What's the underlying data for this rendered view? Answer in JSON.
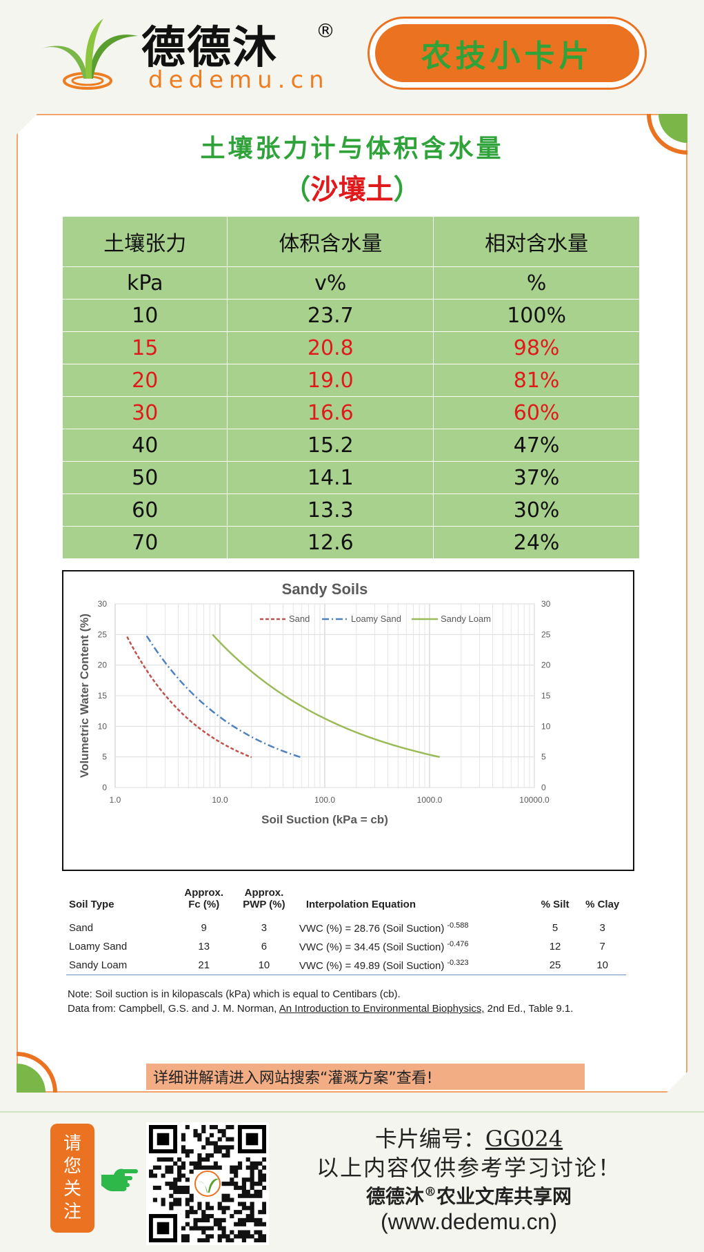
{
  "header": {
    "brand_name": "德德沐",
    "brand_reg": "®",
    "brand_url": "dedemu.cn",
    "card_badge": "农技小卡片"
  },
  "title": "土壤张力计与体积含水量",
  "subtitle": {
    "open": "（",
    "text": "沙壤土",
    "close": "）"
  },
  "table": {
    "headers": [
      "土壤张力",
      "体积含水量",
      "相对含水量"
    ],
    "units": [
      "kPa",
      "v%",
      "%"
    ],
    "rows": [
      {
        "tension": "10",
        "vwc": "23.7",
        "rel": "100%",
        "highlight": false
      },
      {
        "tension": "15",
        "vwc": "20.8",
        "rel": "98%",
        "highlight": true
      },
      {
        "tension": "20",
        "vwc": "19.0",
        "rel": "81%",
        "highlight": true
      },
      {
        "tension": "30",
        "vwc": "16.6",
        "rel": "60%",
        "highlight": true
      },
      {
        "tension": "40",
        "vwc": "15.2",
        "rel": "47%",
        "highlight": false
      },
      {
        "tension": "50",
        "vwc": "14.1",
        "rel": "37%",
        "highlight": false
      },
      {
        "tension": "60",
        "vwc": "13.3",
        "rel": "30%",
        "highlight": false
      },
      {
        "tension": "70",
        "vwc": "12.6",
        "rel": "24%",
        "highlight": false
      }
    ]
  },
  "chart_data": {
    "type": "line",
    "title": "Sandy Soils",
    "xlabel": "Soil Suction (kPa = cb)",
    "ylabel": "Volumetric Water Content  (%)",
    "xscale": "log",
    "xlim": [
      1,
      10000
    ],
    "ylim": [
      0,
      30
    ],
    "x_ticks": [
      "1.0",
      "10.0",
      "100.0",
      "1000.0",
      "10000.0"
    ],
    "y_ticks": [
      "0",
      "5",
      "10",
      "15",
      "20",
      "25",
      "30"
    ],
    "grid": true,
    "legend": "top-right",
    "series": [
      {
        "name": "Sand",
        "color": "#c0504d",
        "style": "dashed",
        "coef": 28.76,
        "exp": -0.588,
        "x_range": [
          1.3,
          20
        ]
      },
      {
        "name": "Loamy Sand",
        "color": "#4f81bd",
        "style": "dash-dot",
        "coef": 34.45,
        "exp": -0.476,
        "x_range": [
          2.0,
          60
        ]
      },
      {
        "name": "Sandy Loam",
        "color": "#9bbb59",
        "style": "solid",
        "coef": 49.89,
        "exp": -0.323,
        "x_range": [
          8.5,
          1250
        ]
      }
    ]
  },
  "soil_table": {
    "headers": {
      "type": "Soil Type",
      "fc": "Approx.\nFc (%)",
      "pwp": "Approx.\nPWP (%)",
      "eq": "Interpolation Equation",
      "silt": "% Silt",
      "clay": "% Clay"
    },
    "rows": [
      {
        "type": "Sand",
        "fc": "9",
        "pwp": "3",
        "eq": "VWC (%) = 28.76 (Soil Suction)",
        "exp": "-0.588",
        "silt": "5",
        "clay": "3"
      },
      {
        "type": "Loamy Sand",
        "fc": "13",
        "pwp": "6",
        "eq": "VWC (%) = 34.45 (Soil Suction)",
        "exp": "-0.476",
        "silt": "12",
        "clay": "7"
      },
      {
        "type": "Sandy Loam",
        "fc": "21",
        "pwp": "10",
        "eq": "VWC (%) = 49.89 (Soil Suction)",
        "exp": "-0.323",
        "silt": "25",
        "clay": "10"
      }
    ],
    "note": "Note:  Soil suction is in kilopascals (kPa) which is equal to Centibars (cb).",
    "source_prefix": "Data from: Campbell, G.S. and J. M. Norman, ",
    "source_book": "An Introduction to Environmental Biophysics,",
    "source_suffix": " 2nd Ed., Table 9.1."
  },
  "tip": "详细讲解请进入网站搜索“灌溉方案”查看!",
  "footer": {
    "follow": [
      "请",
      "您",
      "关",
      "注"
    ],
    "card_label": "卡片编号：",
    "card_no": "GG024",
    "disclaimer": "以上内容仅供参考学习讨论！",
    "library_prefix": "德德沐",
    "library_reg": "®",
    "library_suffix": "农业文库共享网",
    "site": "(www.dedemu.cn)"
  },
  "colors": {
    "accent_orange": "#ea7221",
    "accent_green": "#2fa23a",
    "highlight_red": "#e0191b",
    "table_green": "#a9d18e"
  }
}
